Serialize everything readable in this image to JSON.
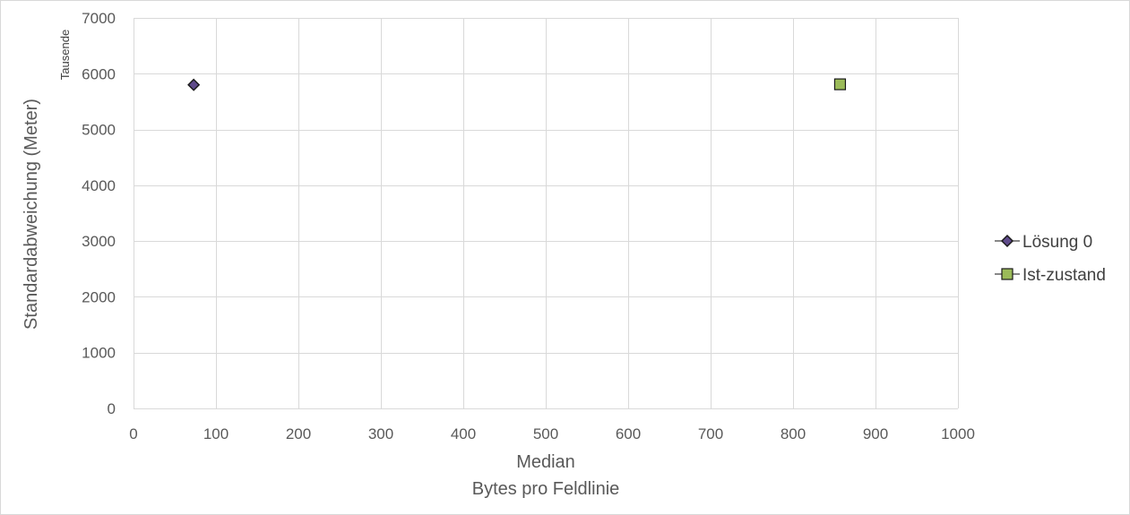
{
  "chart_data": {
    "type": "scatter",
    "title": "",
    "xlabel": "Median",
    "xlabel_sub": "Bytes pro Feldlinie",
    "ylabel": "Standardabweichung (Meter)",
    "y_unit_label": "Tausende",
    "xlim": [
      0,
      1000
    ],
    "ylim": [
      0,
      7000
    ],
    "x_ticks": [
      0,
      100,
      200,
      300,
      400,
      500,
      600,
      700,
      800,
      900,
      1000
    ],
    "y_ticks": [
      0,
      1000,
      2000,
      3000,
      4000,
      5000,
      6000,
      7000
    ],
    "x_tick_labels": [
      "0",
      "100",
      "200",
      "300",
      "400",
      "500",
      "600",
      "700",
      "800",
      "900",
      "1000"
    ],
    "y_tick_labels": [
      "0",
      "1000",
      "2000",
      "3000",
      "4000",
      "5000",
      "6000",
      "7000"
    ],
    "grid": true,
    "legend_position": "right",
    "series": [
      {
        "name": "Lösung 0",
        "marker": "diamond",
        "color": "#5f4b8b",
        "points": [
          {
            "x": 73,
            "y": 5800
          }
        ]
      },
      {
        "name": "Ist-zustand",
        "marker": "square",
        "color": "#9bbb59",
        "points": [
          {
            "x": 857,
            "y": 5810
          }
        ]
      }
    ]
  }
}
